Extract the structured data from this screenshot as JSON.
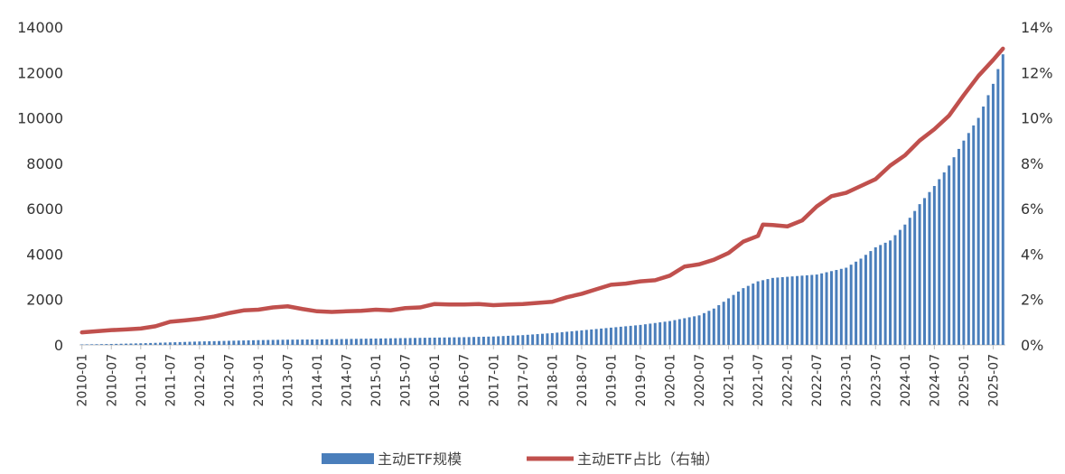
{
  "chart_data": {
    "type": "bar+line",
    "title": "",
    "colors": {
      "bar": "#4A7EBB",
      "line": "#C0504D",
      "axis": "#BFBFBF"
    },
    "left_axis": {
      "range": [
        0,
        14000
      ],
      "ticks": [
        "0",
        "2000",
        "4000",
        "6000",
        "8000",
        "10000",
        "12000",
        "14000"
      ]
    },
    "right_axis": {
      "range": [
        0,
        0.14
      ],
      "ticks": [
        "0%",
        "2%",
        "4%",
        "6%",
        "8%",
        "10%",
        "12%",
        "14%"
      ]
    },
    "x_tick_labels": [
      "2010-01",
      "2010-07",
      "2011-01",
      "2011-07",
      "2012-01",
      "2012-07",
      "2013-01",
      "2013-07",
      "2014-01",
      "2014-07",
      "2015-01",
      "2015-07",
      "2016-01",
      "2016-07",
      "2017-01",
      "2017-07",
      "2018-01",
      "2018-07",
      "2019-01",
      "2019-07",
      "2020-01",
      "2020-07",
      "2021-01",
      "2021-07",
      "2022-01",
      "2022-07",
      "2023-01",
      "2023-07",
      "2024-01",
      "2024-07",
      "2025-01",
      "2025-07"
    ],
    "legend_position": "bottom",
    "series": [
      {
        "name": "主动ETF规模",
        "type": "bar",
        "axis": "left",
        "points": [
          [
            "2010-01",
            20
          ],
          [
            "2010-07",
            40
          ],
          [
            "2011-01",
            70
          ],
          [
            "2011-07",
            110
          ],
          [
            "2012-01",
            150
          ],
          [
            "2012-07",
            180
          ],
          [
            "2013-01",
            210
          ],
          [
            "2013-07",
            230
          ],
          [
            "2014-01",
            240
          ],
          [
            "2014-07",
            260
          ],
          [
            "2015-01",
            280
          ],
          [
            "2015-07",
            300
          ],
          [
            "2016-01",
            320
          ],
          [
            "2016-07",
            340
          ],
          [
            "2017-01",
            370
          ],
          [
            "2017-07",
            430
          ],
          [
            "2018-01",
            520
          ],
          [
            "2018-07",
            640
          ],
          [
            "2019-01",
            760
          ],
          [
            "2019-07",
            880
          ],
          [
            "2020-01",
            1050
          ],
          [
            "2020-07",
            1300
          ],
          [
            "2020-10",
            1600
          ],
          [
            "2021-01",
            2050
          ],
          [
            "2021-04",
            2500
          ],
          [
            "2021-07",
            2800
          ],
          [
            "2021-10",
            2950
          ],
          [
            "2022-01",
            3000
          ],
          [
            "2022-07",
            3100
          ],
          [
            "2023-01",
            3400
          ],
          [
            "2023-04",
            3800
          ],
          [
            "2023-07",
            4300
          ],
          [
            "2023-10",
            4600
          ],
          [
            "2024-01",
            5300
          ],
          [
            "2024-04",
            6200
          ],
          [
            "2024-07",
            7000
          ],
          [
            "2024-10",
            7900
          ],
          [
            "2025-01",
            9000
          ],
          [
            "2025-04",
            10000
          ],
          [
            "2025-07",
            11500
          ],
          [
            "2025-09",
            12800
          ]
        ]
      },
      {
        "name": "主动ETF占比（右轴）",
        "type": "line",
        "axis": "right",
        "points": [
          [
            "2010-01",
            0.0055
          ],
          [
            "2010-04",
            0.006
          ],
          [
            "2010-07",
            0.0065
          ],
          [
            "2010-10",
            0.0068
          ],
          [
            "2011-01",
            0.0072
          ],
          [
            "2011-04",
            0.0082
          ],
          [
            "2011-07",
            0.0102
          ],
          [
            "2011-10",
            0.0108
          ],
          [
            "2012-01",
            0.0115
          ],
          [
            "2012-04",
            0.0125
          ],
          [
            "2012-07",
            0.014
          ],
          [
            "2012-10",
            0.0152
          ],
          [
            "2013-01",
            0.0155
          ],
          [
            "2013-04",
            0.0165
          ],
          [
            "2013-07",
            0.017
          ],
          [
            "2013-10",
            0.0158
          ],
          [
            "2014-01",
            0.0148
          ],
          [
            "2014-04",
            0.0145
          ],
          [
            "2014-07",
            0.0148
          ],
          [
            "2014-10",
            0.015
          ],
          [
            "2015-01",
            0.0155
          ],
          [
            "2015-04",
            0.0152
          ],
          [
            "2015-07",
            0.0162
          ],
          [
            "2015-10",
            0.0165
          ],
          [
            "2016-01",
            0.018
          ],
          [
            "2016-04",
            0.0178
          ],
          [
            "2016-07",
            0.0178
          ],
          [
            "2016-10",
            0.018
          ],
          [
            "2017-01",
            0.0175
          ],
          [
            "2017-04",
            0.0178
          ],
          [
            "2017-07",
            0.018
          ],
          [
            "2017-10",
            0.0185
          ],
          [
            "2018-01",
            0.019
          ],
          [
            "2018-04",
            0.021
          ],
          [
            "2018-07",
            0.0225
          ],
          [
            "2018-10",
            0.0245
          ],
          [
            "2019-01",
            0.0265
          ],
          [
            "2019-04",
            0.027
          ],
          [
            "2019-07",
            0.028
          ],
          [
            "2019-10",
            0.0285
          ],
          [
            "2020-01",
            0.0305
          ],
          [
            "2020-04",
            0.0345
          ],
          [
            "2020-07",
            0.0355
          ],
          [
            "2020-10",
            0.0375
          ],
          [
            "2021-01",
            0.0405
          ],
          [
            "2021-04",
            0.0455
          ],
          [
            "2021-07",
            0.048
          ],
          [
            "2021-08",
            0.053
          ],
          [
            "2021-10",
            0.0528
          ],
          [
            "2022-01",
            0.0522
          ],
          [
            "2022-04",
            0.0548
          ],
          [
            "2022-07",
            0.061
          ],
          [
            "2022-10",
            0.0655
          ],
          [
            "2023-01",
            0.067
          ],
          [
            "2023-04",
            0.07
          ],
          [
            "2023-07",
            0.073
          ],
          [
            "2023-10",
            0.079
          ],
          [
            "2024-01",
            0.0835
          ],
          [
            "2024-04",
            0.09
          ],
          [
            "2024-07",
            0.095
          ],
          [
            "2024-10",
            0.101
          ],
          [
            "2025-01",
            0.11
          ],
          [
            "2025-04",
            0.1185
          ],
          [
            "2025-07",
            0.1255
          ],
          [
            "2025-09",
            0.1305
          ]
        ]
      }
    ]
  }
}
